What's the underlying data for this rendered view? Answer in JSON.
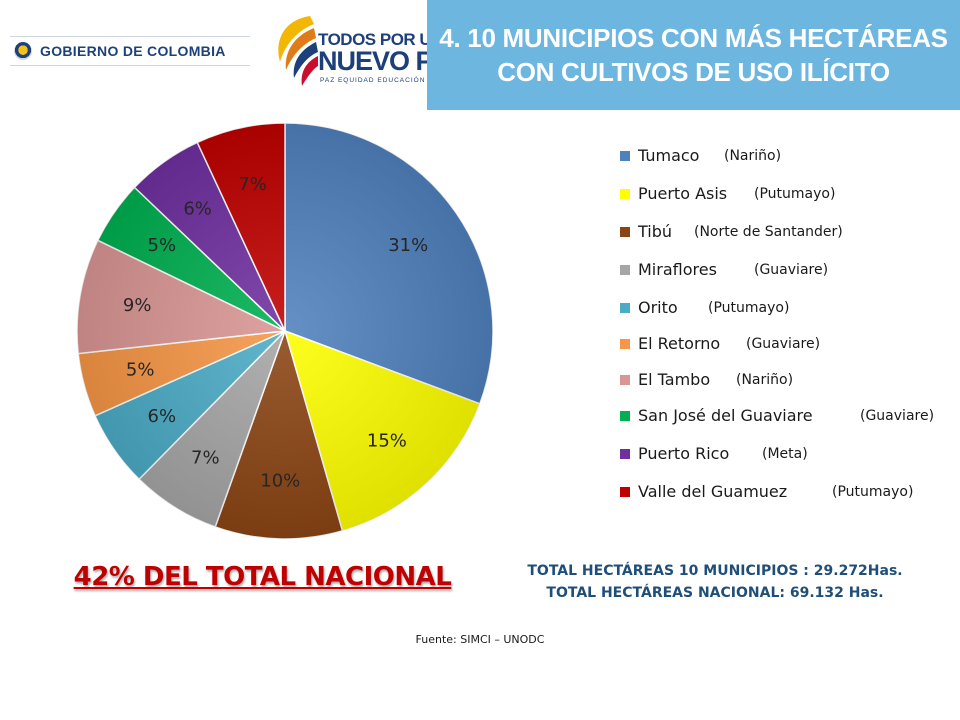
{
  "header": {
    "government_label": "GOBIERNO DE COLOMBIA",
    "brand": {
      "line1": "TODOS POR UN",
      "line2": "NUEVO PAÍS",
      "line3": "PAZ  EQUIDAD  EDUCACIÓN"
    }
  },
  "title": {
    "line1": "4. 10 MUNICIPIOS CON MÁS HECTÁREAS",
    "line2": "CON CULTIVOS DE USO ILÍCITO",
    "background_color": "#6cb6e0"
  },
  "chart_data": {
    "type": "pie",
    "title": "",
    "categories": [
      "Tumaco",
      "Puerto Asis",
      "Tibú",
      "Miraflores",
      "Orito",
      "El Retorno",
      "El Tambo",
      "San  José del Guaviare",
      "Puerto Rico",
      "Valle del Guamuez"
    ],
    "departments": [
      "(Nariño)",
      "(Putumayo)",
      "(Norte de Santander)",
      "(Guaviare)",
      "(Putumayo)",
      "(Guaviare)",
      "(Nariño)",
      "(Guaviare)",
      "(Meta)",
      "(Putumayo)"
    ],
    "values": [
      31,
      15,
      10,
      7,
      6,
      5,
      9,
      5,
      6,
      7
    ],
    "labels": [
      "31%",
      "15%",
      "10%",
      "7%",
      "6%",
      "5%",
      "9%",
      "5%",
      "6%",
      "7%"
    ],
    "colors": [
      "#4f81bd",
      "#ffff00",
      "#8b4513",
      "#a6a6a6",
      "#4bacc6",
      "#f79646",
      "#d99694",
      "#00b050",
      "#7030a0",
      "#c00000"
    ],
    "legend_position": "right"
  },
  "highlight": "42% DEL TOTAL NACIONAL",
  "totals": {
    "line1": "TOTAL HECTÁREAS 10 MUNICIPIOS : 29.272Has.",
    "line2": "TOTAL HECTÁREAS NACIONAL:  69.132 Has."
  },
  "source": "Fuente: SIMCI – UNODC"
}
